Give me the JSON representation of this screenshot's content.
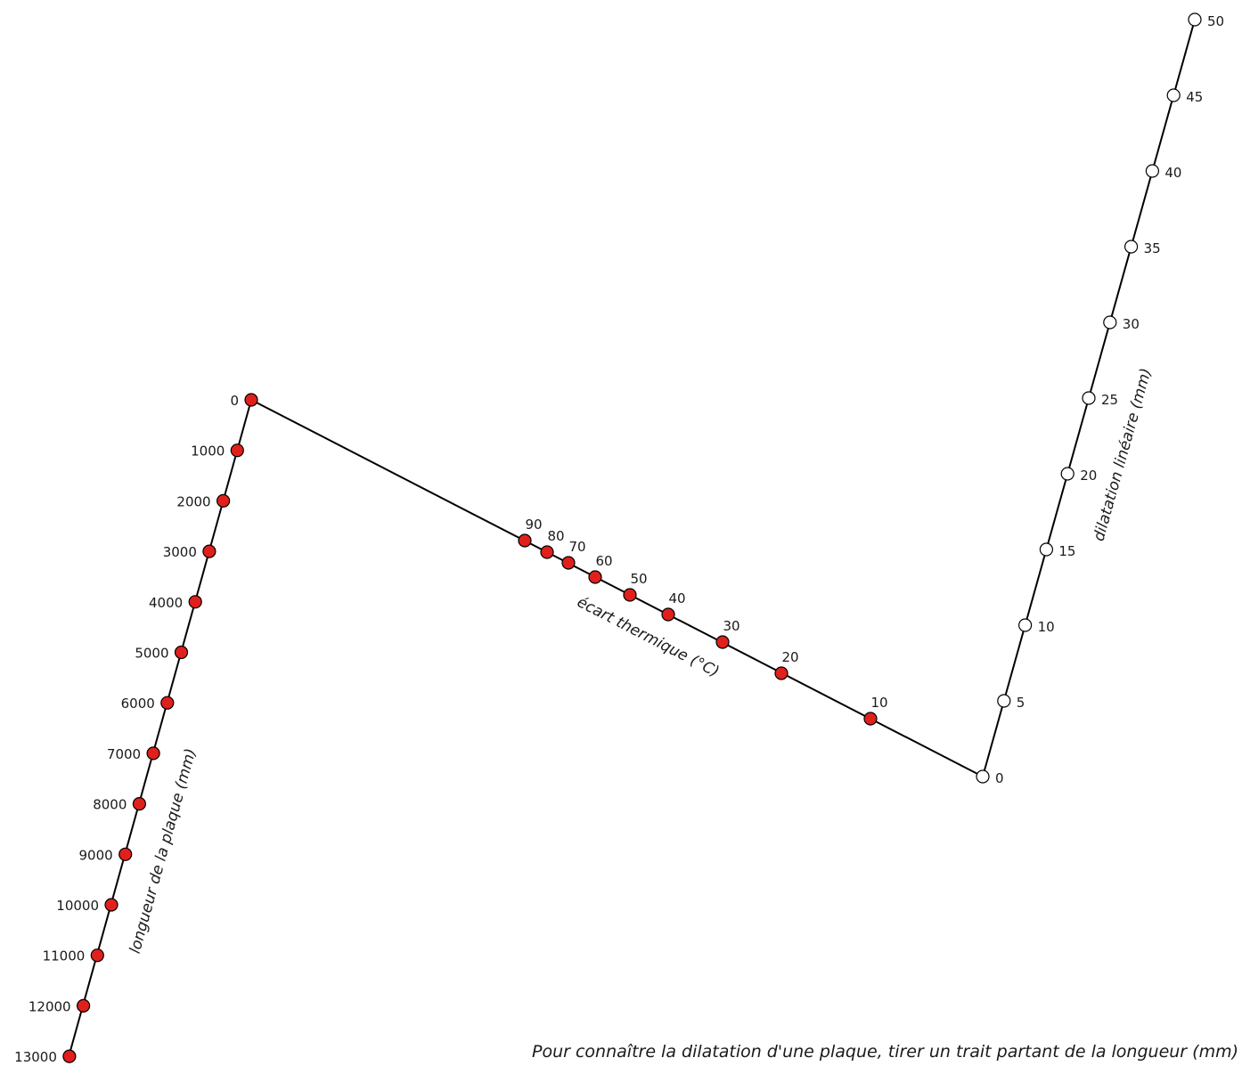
{
  "diagram": {
    "type": "nomogram",
    "instruction": "Pour connaître la dilatation d'une plaque, tirer un trait partant de la longueur (mm)",
    "scales": {
      "length": {
        "label": "longueur de la plaque (mm)",
        "ticks": [
          "0",
          "1000",
          "2000",
          "3000",
          "4000",
          "5000",
          "6000",
          "7000",
          "8000",
          "9000",
          "10000",
          "11000",
          "12000",
          "13000"
        ],
        "marker": "filled",
        "color": "#e0201c"
      },
      "temperature": {
        "label": "écart thermique (°C)",
        "ticks": [
          "10",
          "20",
          "30",
          "40",
          "50",
          "60",
          "70",
          "80",
          "90"
        ],
        "marker": "filled",
        "color": "#e0201c"
      },
      "dilatation": {
        "label": "dilatation linéaire  (mm)",
        "ticks": [
          "0",
          "5",
          "10",
          "15",
          "20",
          "25",
          "30",
          "35",
          "40",
          "45",
          "50"
        ],
        "marker": "hollow",
        "color": "#ffffff"
      }
    }
  }
}
